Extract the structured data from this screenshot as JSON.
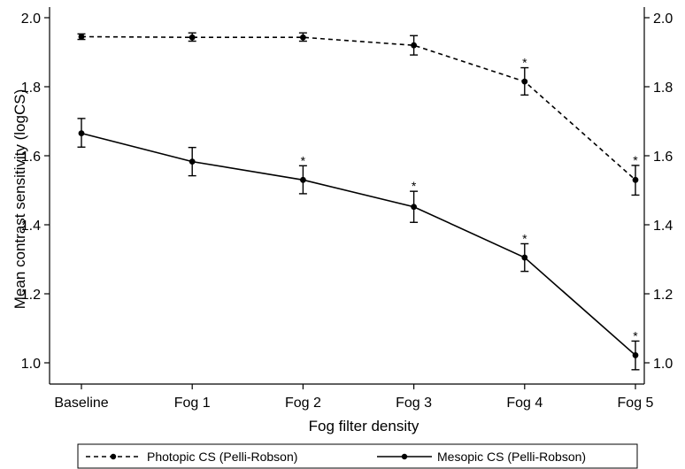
{
  "chart_data": {
    "type": "line",
    "categories": [
      "Baseline",
      "Fog 1",
      "Fog 2",
      "Fog 3",
      "Fog 4",
      "Fog 5"
    ],
    "xlabel": "Fog filter density",
    "ylabel": "Mean contrast sensitivity (logCS)",
    "ylim": [
      1.0,
      2.0
    ],
    "yticks": [
      "1.0",
      "1.2",
      "1.4",
      "1.6",
      "1.8",
      "2.0"
    ],
    "grid": false,
    "legend_position": "bottom",
    "significance_marker": "*",
    "series": [
      {
        "name": "Photopic CS (Pelli-Robson)",
        "style": "dashed",
        "values": [
          1.945,
          1.943,
          1.943,
          1.92,
          1.815,
          1.53
        ],
        "err_low": [
          1.937,
          1.932,
          1.932,
          1.892,
          1.776,
          1.486
        ],
        "err_high": [
          1.953,
          1.956,
          1.956,
          1.948,
          1.855,
          1.572
        ],
        "significant": [
          false,
          false,
          false,
          false,
          true,
          true
        ]
      },
      {
        "name": "Mesopic CS (Pelli-Robson)",
        "style": "solid",
        "values": [
          1.665,
          1.583,
          1.53,
          1.452,
          1.305,
          1.022
        ],
        "err_low": [
          1.625,
          1.542,
          1.49,
          1.407,
          1.265,
          0.98
        ],
        "err_high": [
          1.708,
          1.624,
          1.571,
          1.497,
          1.345,
          1.063
        ],
        "significant": [
          false,
          false,
          true,
          true,
          true,
          true
        ]
      }
    ]
  },
  "colors": {
    "ink": "#000000",
    "background": "#ffffff"
  }
}
